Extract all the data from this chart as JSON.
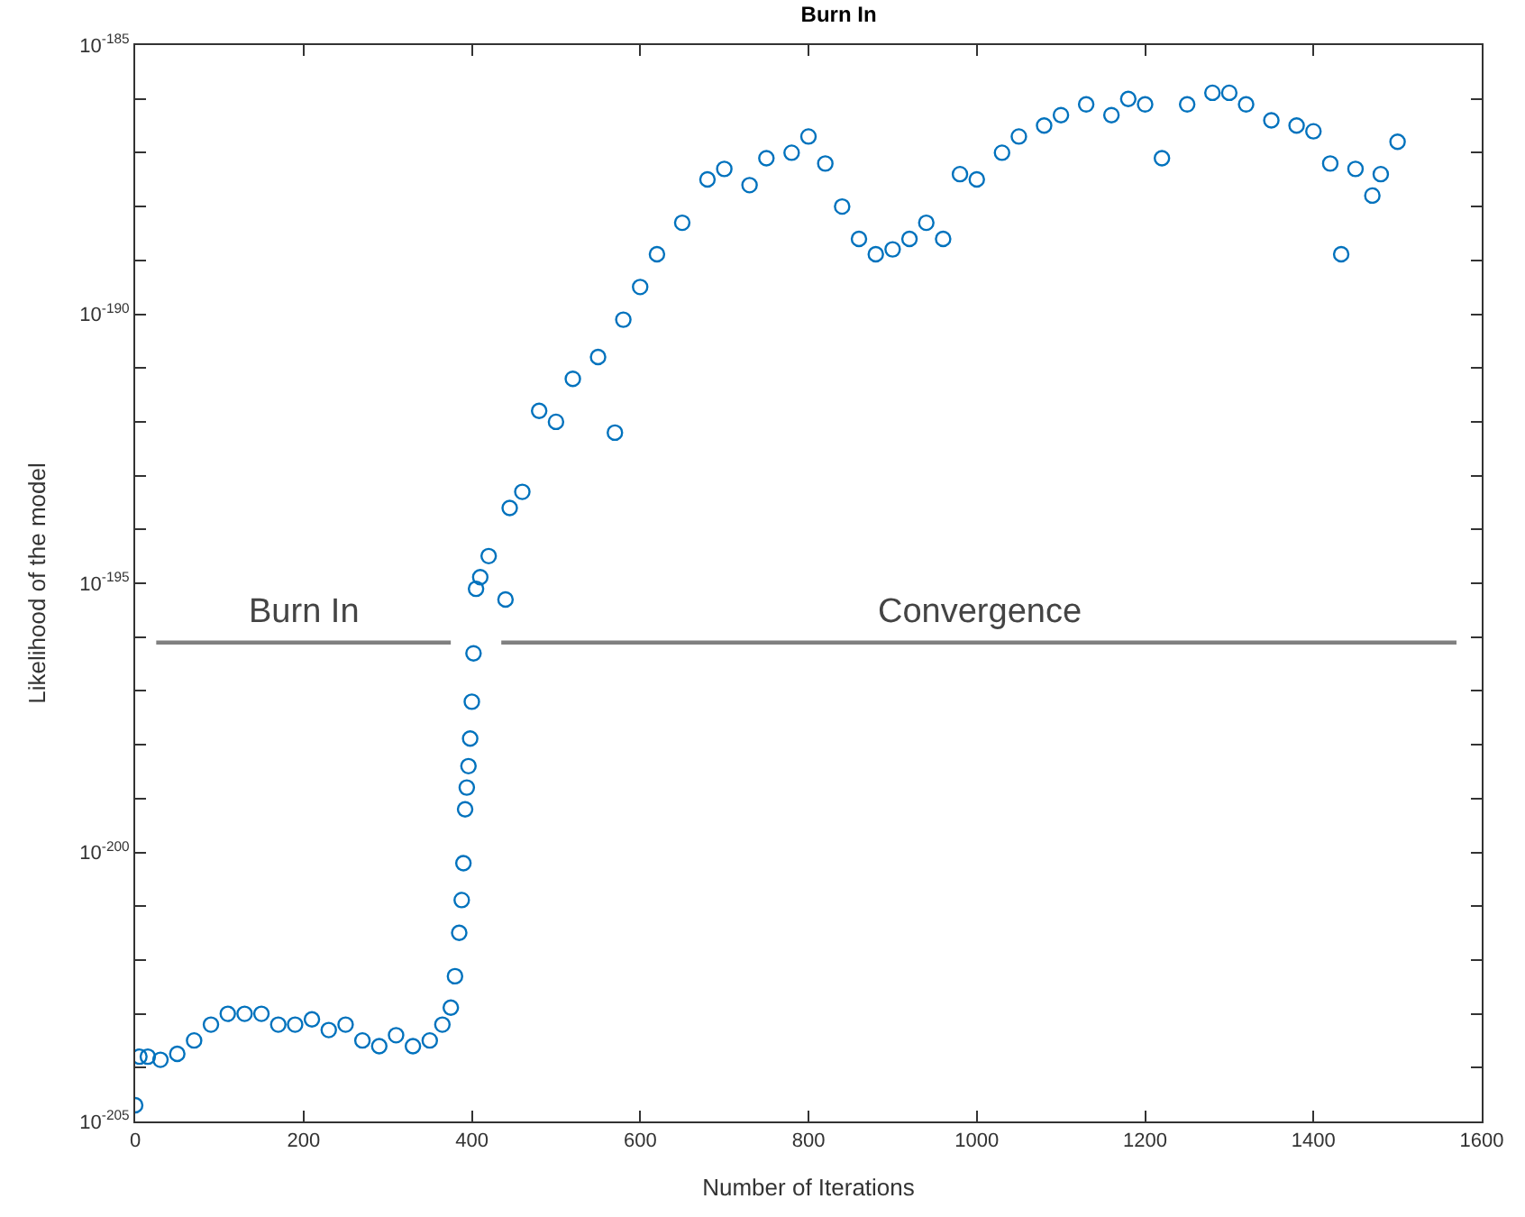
{
  "chart_data": {
    "type": "scatter",
    "title": "Burn In",
    "xlabel": "Number of Iterations",
    "ylabel": "Likelihood of the model",
    "log": "y",
    "xlim": [
      0,
      1600
    ],
    "xticks": [
      0,
      200,
      400,
      600,
      800,
      1000,
      1200,
      1400,
      1600
    ],
    "ylim": [
      1e-205,
      1e-185
    ],
    "yticks": [
      {
        "value": 1e-205,
        "label": "10$^{-205}$"
      },
      {
        "value": 1e-204,
        "label": null
      },
      {
        "value": 1e-203,
        "label": null
      },
      {
        "value": 1e-202,
        "label": null
      },
      {
        "value": 1e-201,
        "label": null
      },
      {
        "value": 1e-200,
        "label": "10$^{-200}$"
      },
      {
        "value": 1e-199,
        "label": null
      },
      {
        "value": 1e-198,
        "label": null
      },
      {
        "value": 1e-197,
        "label": null
      },
      {
        "value": 1e-196,
        "label": null
      },
      {
        "value": 1e-195,
        "label": "10$^{-195}$"
      },
      {
        "value": 1e-194,
        "label": null
      },
      {
        "value": 1e-193,
        "label": null
      },
      {
        "value": 1e-192,
        "label": null
      },
      {
        "value": 1e-191,
        "label": null
      },
      {
        "value": 1e-190,
        "label": "10$^{-190}$"
      },
      {
        "value": 1e-189,
        "label": null
      },
      {
        "value": 1e-188,
        "label": null
      },
      {
        "value": 1e-187,
        "label": null
      },
      {
        "value": 1e-186,
        "label": null
      },
      {
        "value": 1e-185,
        "label": "10$^{-185}$"
      }
    ],
    "series": [
      {
        "marker": "circle",
        "color": "#0072bd",
        "x": [
          0,
          5,
          15,
          30,
          50,
          70,
          90,
          110,
          130,
          150,
          170,
          190,
          210,
          230,
          250,
          270,
          290,
          310,
          330,
          350,
          365,
          375,
          380,
          385,
          388,
          390,
          392,
          394,
          396,
          398,
          400,
          402,
          405,
          410,
          420,
          440,
          445,
          460,
          480,
          500,
          520,
          550,
          570,
          580,
          600,
          620,
          650,
          680,
          700,
          730,
          750,
          780,
          800,
          820,
          840,
          860,
          880,
          900,
          920,
          940,
          960,
          980,
          1000,
          1030,
          1050,
          1080,
          1100,
          1130,
          1160,
          1180,
          1200,
          1220,
          1250,
          1280,
          1300,
          1320,
          1350,
          1380,
          1400,
          1420,
          1433,
          1450,
          1470,
          1480,
          1500
        ],
        "values": [
          2e-205,
          1.6e-204,
          1.6e-204,
          1.4e-204,
          1.8e-204,
          3.2e-204,
          6.3e-204,
          1e-203,
          1e-203,
          1e-203,
          6.3e-204,
          6.3e-204,
          7.9e-204,
          5e-204,
          6.3e-204,
          3.2e-204,
          2.5e-204,
          4e-204,
          2.5e-204,
          3.2e-204,
          6.3e-204,
          1.3e-203,
          5e-203,
          3.2e-202,
          1.3e-201,
          6.3e-201,
          6.3e-200,
          1.6e-199,
          4e-199,
          1.3e-198,
          6.3e-198,
          5e-197,
          7.9e-196,
          1.3e-195,
          3.2e-195,
          5e-196,
          2.5e-194,
          5e-194,
          1.6e-192,
          1e-192,
          6.3e-192,
          1.6e-191,
          6.3e-193,
          7.9e-191,
          3.2e-190,
          1.3e-189,
          5e-189,
          3.2e-188,
          5e-188,
          2.5e-188,
          7.9e-188,
          1e-187,
          2e-187,
          6.3e-188,
          1e-188,
          2.5e-189,
          1.3e-189,
          1.6e-189,
          2.5e-189,
          5e-189,
          2.5e-189,
          4e-188,
          3.2e-188,
          1e-187,
          2e-187,
          3.2e-187,
          5e-187,
          7.9e-187,
          5e-187,
          1e-186,
          7.9e-187,
          7.9e-188,
          7.9e-187,
          1.3e-186,
          1.3e-186,
          7.9e-187,
          4e-187,
          3.2e-187,
          2.5e-187,
          6.3e-188,
          1.3e-189,
          5e-188,
          1.6e-188,
          4e-188,
          1.6e-187
        ]
      },
      {
        "type": "line",
        "marker": "none",
        "name": "Burn In",
        "color": "#808080",
        "x": [
          25,
          375
        ],
        "values": [
          7.9e-197,
          7.9e-197
        ]
      },
      {
        "type": "line",
        "marker": "none",
        "name": "Convergence",
        "color": "#808080",
        "x": [
          435,
          1570
        ],
        "values": [
          7.9e-197,
          7.9e-197
        ]
      }
    ]
  }
}
